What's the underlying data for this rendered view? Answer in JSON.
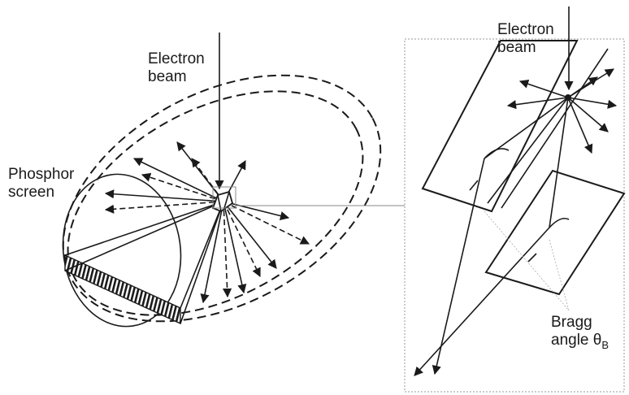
{
  "labels": {
    "electron_beam_left_line1": "Electron",
    "electron_beam_left_line2": "beam",
    "phosphor_line1": "Phosphor",
    "phosphor_line2": "screen",
    "electron_beam_right_line1": "Electron",
    "electron_beam_right_line2": "beam",
    "bragg_line1": "Bragg",
    "bragg_line2_prefix": "angle ",
    "bragg_theta": "θ",
    "bragg_sub": "B"
  },
  "colors": {
    "ink": "#1a1a1a",
    "guide": "#888888",
    "background": "#ffffff"
  }
}
